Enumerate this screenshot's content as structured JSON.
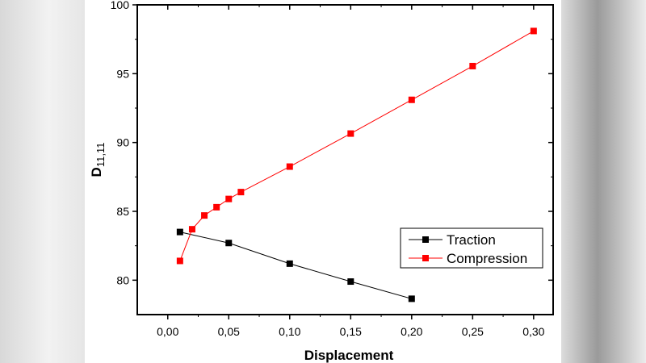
{
  "chart_data": {
    "type": "line",
    "title": "",
    "xlabel": "Displacement",
    "ylabel_main": "D",
    "ylabel_sub": "11,11",
    "xlim": [
      -0.025,
      0.316
    ],
    "ylim": [
      77.5,
      100
    ],
    "xticks": [
      0.0,
      0.05,
      0.1,
      0.15,
      0.2,
      0.25,
      0.3
    ],
    "xtick_labels": [
      "0,00",
      "0,05",
      "0,10",
      "0,15",
      "0,20",
      "0,25",
      "0,30"
    ],
    "yticks": [
      80,
      85,
      90,
      95,
      100
    ],
    "ytick_labels": [
      "80",
      "85",
      "90",
      "95",
      "100"
    ],
    "grid": false,
    "legend_placement": "lower-right",
    "series": [
      {
        "name": "Traction",
        "color": "#000000",
        "marker": "square",
        "x": [
          0.01,
          0.05,
          0.1,
          0.15,
          0.2
        ],
        "y": [
          83.5,
          82.7,
          81.2,
          79.9,
          78.65
        ]
      },
      {
        "name": "Compression",
        "color": "#ff0000",
        "marker": "square",
        "x": [
          0.01,
          0.02,
          0.03,
          0.04,
          0.05,
          0.06,
          0.1,
          0.15,
          0.2,
          0.25,
          0.3
        ],
        "y": [
          81.4,
          83.7,
          84.7,
          85.3,
          85.9,
          86.4,
          88.25,
          90.65,
          93.1,
          95.55,
          98.1
        ]
      }
    ]
  }
}
